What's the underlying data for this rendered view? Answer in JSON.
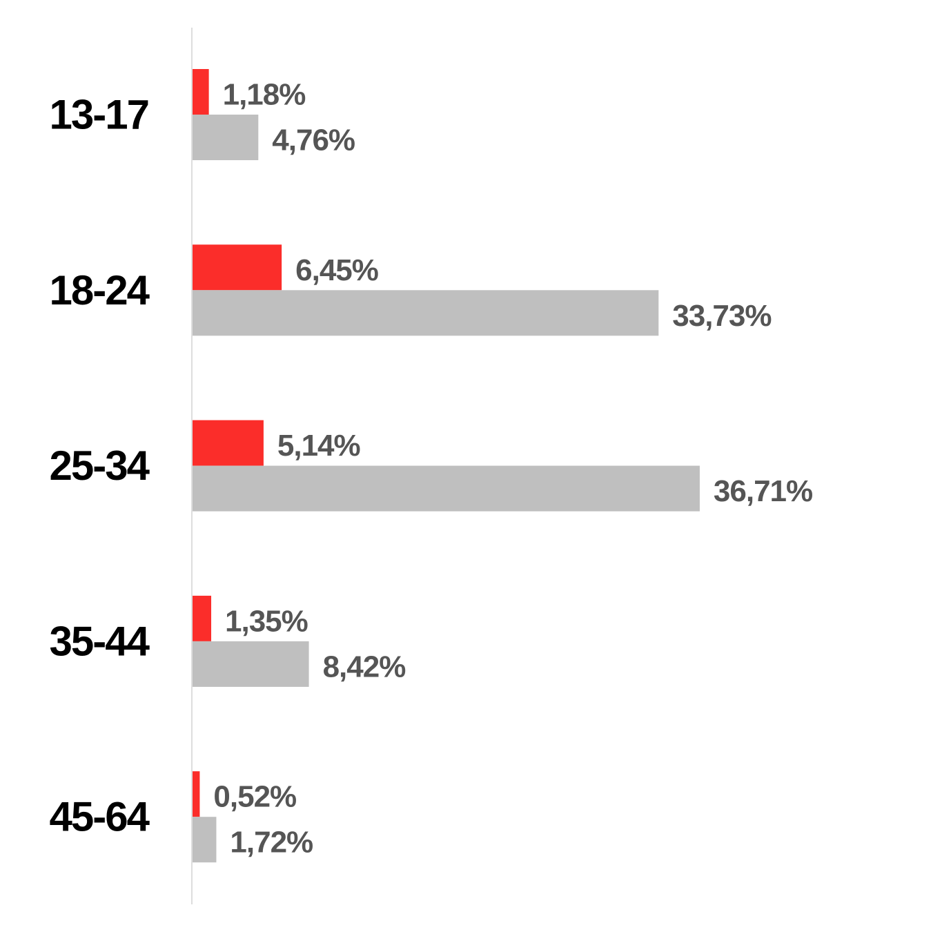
{
  "chart_data": {
    "type": "grouped-hbar",
    "categories": [
      "13-17",
      "18-24",
      "25-34",
      "35-44",
      "45-64"
    ],
    "series": [
      {
        "color": "#fb2d2a",
        "values": [
          1.18,
          6.45,
          5.14,
          1.35,
          0.52
        ],
        "value_labels": [
          "1,18%",
          "6,45%",
          "5,14%",
          "1,35%",
          "0,52%"
        ]
      },
      {
        "color": "#bfbfbf",
        "values": [
          4.76,
          33.73,
          36.71,
          8.42,
          1.72
        ],
        "value_labels": [
          "4,76%",
          "33,73%",
          "36,71%",
          "8,42%",
          "1,72%"
        ]
      }
    ]
  }
}
